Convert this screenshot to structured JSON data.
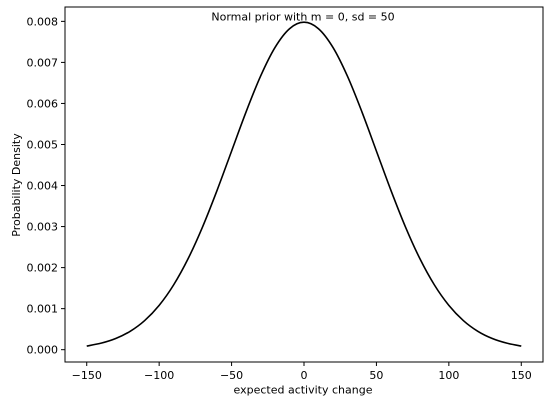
{
  "chart_data": {
    "type": "line",
    "title": "Normal prior with m = 0, sd = 50",
    "xlabel": "expected activity change",
    "ylabel": "Probability Density",
    "xlim": [
      -165,
      165
    ],
    "ylim": [
      -0.0003,
      0.00835
    ],
    "xticks": [
      -150,
      -100,
      -50,
      0,
      50,
      100,
      150
    ],
    "xtick_labels": [
      "−150",
      "−100",
      "−50",
      "0",
      "50",
      "100",
      "150"
    ],
    "yticks": [
      0.0,
      0.001,
      0.002,
      0.003,
      0.004,
      0.005,
      0.006,
      0.007,
      0.008
    ],
    "ytick_labels": [
      "0.000",
      "0.001",
      "0.002",
      "0.003",
      "0.004",
      "0.005",
      "0.006",
      "0.007",
      "0.008"
    ],
    "grid": false,
    "series": [
      {
        "color": "#000000",
        "x": [
          -150,
          -140,
          -130,
          -120,
          -110,
          -100,
          -90,
          -80,
          -70,
          -60,
          -50,
          -40,
          -30,
          -20,
          -10,
          0,
          10,
          20,
          30,
          40,
          50,
          60,
          70,
          80,
          90,
          100,
          110,
          120,
          130,
          140,
          150
        ],
        "y": [
          8.9e-05,
          0.000159,
          0.000272,
          0.000448,
          0.00071,
          0.00108,
          0.001579,
          0.002218,
          0.002995,
          0.003884,
          0.004839,
          0.005794,
          0.006664,
          0.007365,
          0.007821,
          0.007979,
          0.007821,
          0.007365,
          0.006664,
          0.005794,
          0.004839,
          0.003884,
          0.002995,
          0.002218,
          0.001579,
          0.00108,
          0.00071,
          0.000448,
          0.000272,
          0.000159,
          8.9e-05
        ]
      }
    ]
  }
}
